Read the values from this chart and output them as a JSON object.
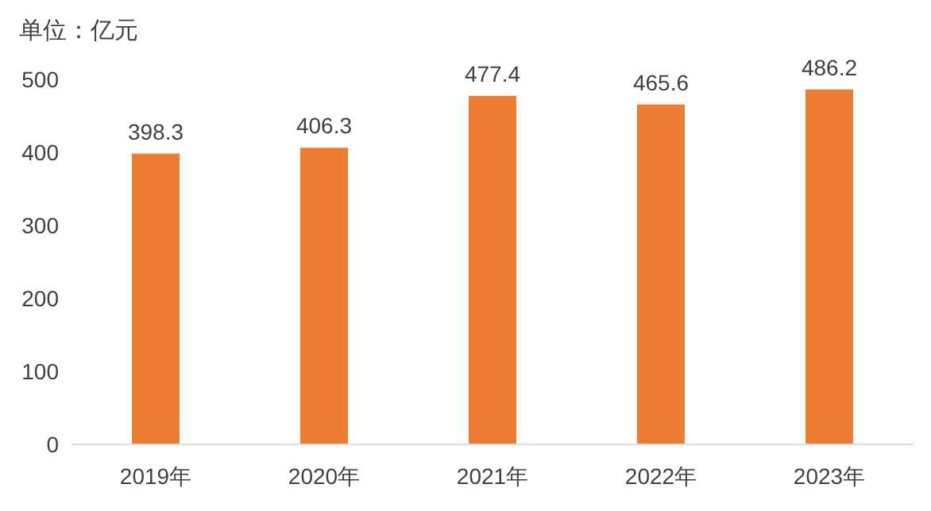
{
  "chart_data": {
    "type": "bar",
    "ylabel": "单位：亿元",
    "categories": [
      "2019年",
      "2020年",
      "2021年",
      "2022年",
      "2023年"
    ],
    "values": [
      398.3,
      406.3,
      477.4,
      465.6,
      486.2
    ],
    "color": "#ed7d31",
    "ylim": [
      0,
      500
    ],
    "yticks": [
      0,
      100,
      200,
      300,
      400,
      500
    ],
    "grid": false,
    "data_labels": true
  }
}
